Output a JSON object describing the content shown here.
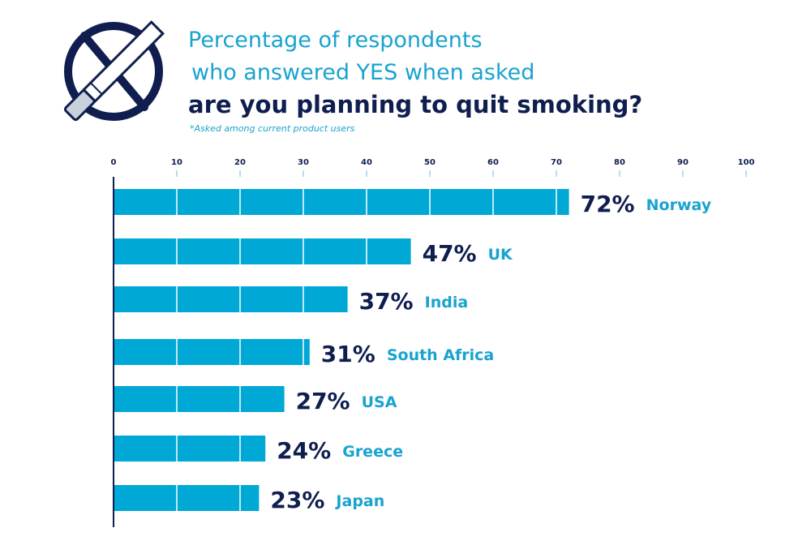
{
  "header": {
    "title_line1": "Percentage of respondents",
    "title_line2": "who answered YES when asked",
    "title_line3": "are you planning to quit smoking?",
    "note": "*Asked among current product users"
  },
  "icons": {
    "logo": "no-smoking-icon"
  },
  "colors": {
    "bar": "#00a8d6",
    "dark_navy": "#0f1e4f",
    "accent_blue": "#19a3cf"
  },
  "chart_data": {
    "type": "bar",
    "orientation": "horizontal",
    "title": "Percentage of respondents who answered YES when asked are you planning to quit smoking?",
    "subtitle": "*Asked among current product users",
    "categories": [
      "Norway",
      "UK",
      "India",
      "South Africa",
      "USA",
      "Greece",
      "Japan"
    ],
    "values": [
      72,
      47,
      37,
      31,
      27,
      24,
      23
    ],
    "value_labels": [
      "72%",
      "47%",
      "37%",
      "31%",
      "27%",
      "24%",
      "23%"
    ],
    "xlim": [
      0,
      100
    ],
    "x_ticks": [
      0,
      10,
      20,
      30,
      40,
      50,
      60,
      70,
      80,
      90,
      100
    ],
    "x_tick_labels": [
      "0",
      "10",
      "20",
      "30",
      "40",
      "50",
      "60",
      "70",
      "80",
      "90",
      "100"
    ],
    "axis_position": "top",
    "grid": false,
    "legend": "none"
  }
}
